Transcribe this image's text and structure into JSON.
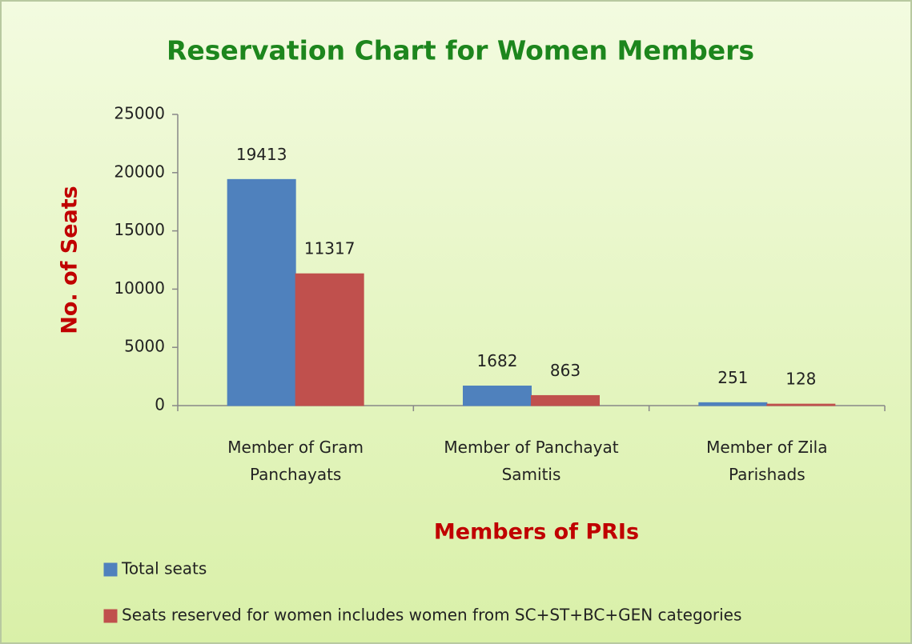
{
  "chart_data": {
    "type": "bar",
    "title": "Reservation Chart for Women Members",
    "ylabel": "No. of Seats",
    "xlabel": "Members of PRIs",
    "categories": [
      "Member of Gram Panchayats",
      "Member of Panchayat Samitis",
      "Member of Zila Parishads"
    ],
    "series": [
      {
        "name": "Total seats",
        "color": "#4f81bd",
        "values": [
          19413,
          1682,
          251
        ]
      },
      {
        "name": "Seats reserved for women includes women from SC+ST+BC+GEN categories",
        "color": "#c0504d",
        "values": [
          11317,
          863,
          128
        ]
      }
    ],
    "ylim": [
      0,
      25000
    ],
    "yticks": [
      0,
      5000,
      10000,
      15000,
      20000,
      25000
    ],
    "legend": "bottom"
  }
}
